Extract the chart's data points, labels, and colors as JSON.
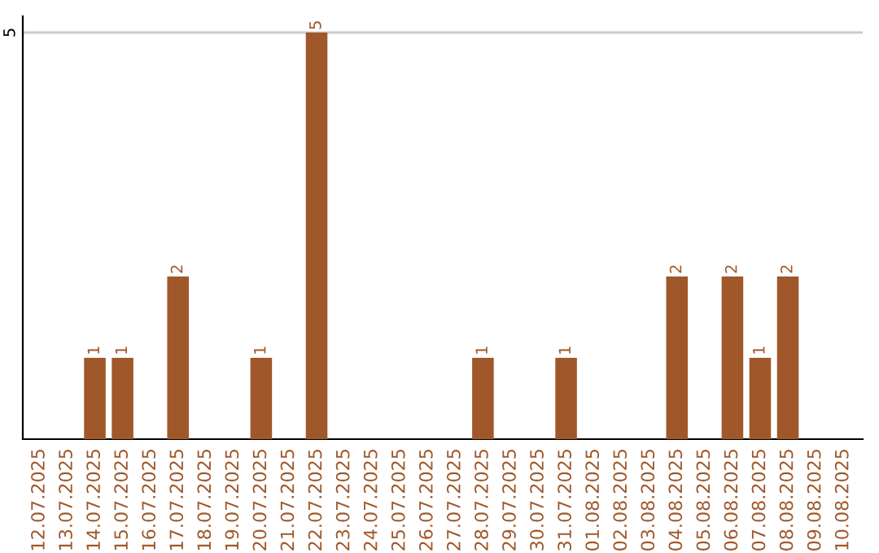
{
  "chart_data": {
    "type": "bar",
    "categories": [
      "12.07.2025",
      "13.07.2025",
      "14.07.2025",
      "15.07.2025",
      "16.07.2025",
      "17.07.2025",
      "18.07.2025",
      "19.07.2025",
      "20.07.2025",
      "21.07.2025",
      "22.07.2025",
      "23.07.2025",
      "24.07.2025",
      "25.07.2025",
      "26.07.2025",
      "27.07.2025",
      "28.07.2025",
      "29.07.2025",
      "30.07.2025",
      "31.07.2025",
      "01.08.2025",
      "02.08.2025",
      "03.08.2025",
      "04.08.2025",
      "05.08.2025",
      "06.08.2025",
      "07.08.2025",
      "08.08.2025",
      "09.08.2025",
      "10.08.2025"
    ],
    "values": [
      0,
      0,
      1,
      1,
      0,
      2,
      0,
      0,
      1,
      0,
      5,
      0,
      0,
      0,
      0,
      0,
      1,
      0,
      0,
      1,
      0,
      0,
      0,
      2,
      0,
      2,
      1,
      2,
      0,
      0
    ],
    "value_labels": [
      null,
      null,
      "1",
      "1",
      null,
      "2",
      null,
      null,
      "1",
      null,
      "5",
      null,
      null,
      null,
      null,
      null,
      "1",
      null,
      null,
      "1",
      null,
      null,
      null,
      "2",
      null,
      "2",
      "1",
      "2",
      null,
      null
    ],
    "color": "#a0582a",
    "ylim": [
      0,
      5.2
    ],
    "yticks": [
      5
    ],
    "grid": "y"
  }
}
